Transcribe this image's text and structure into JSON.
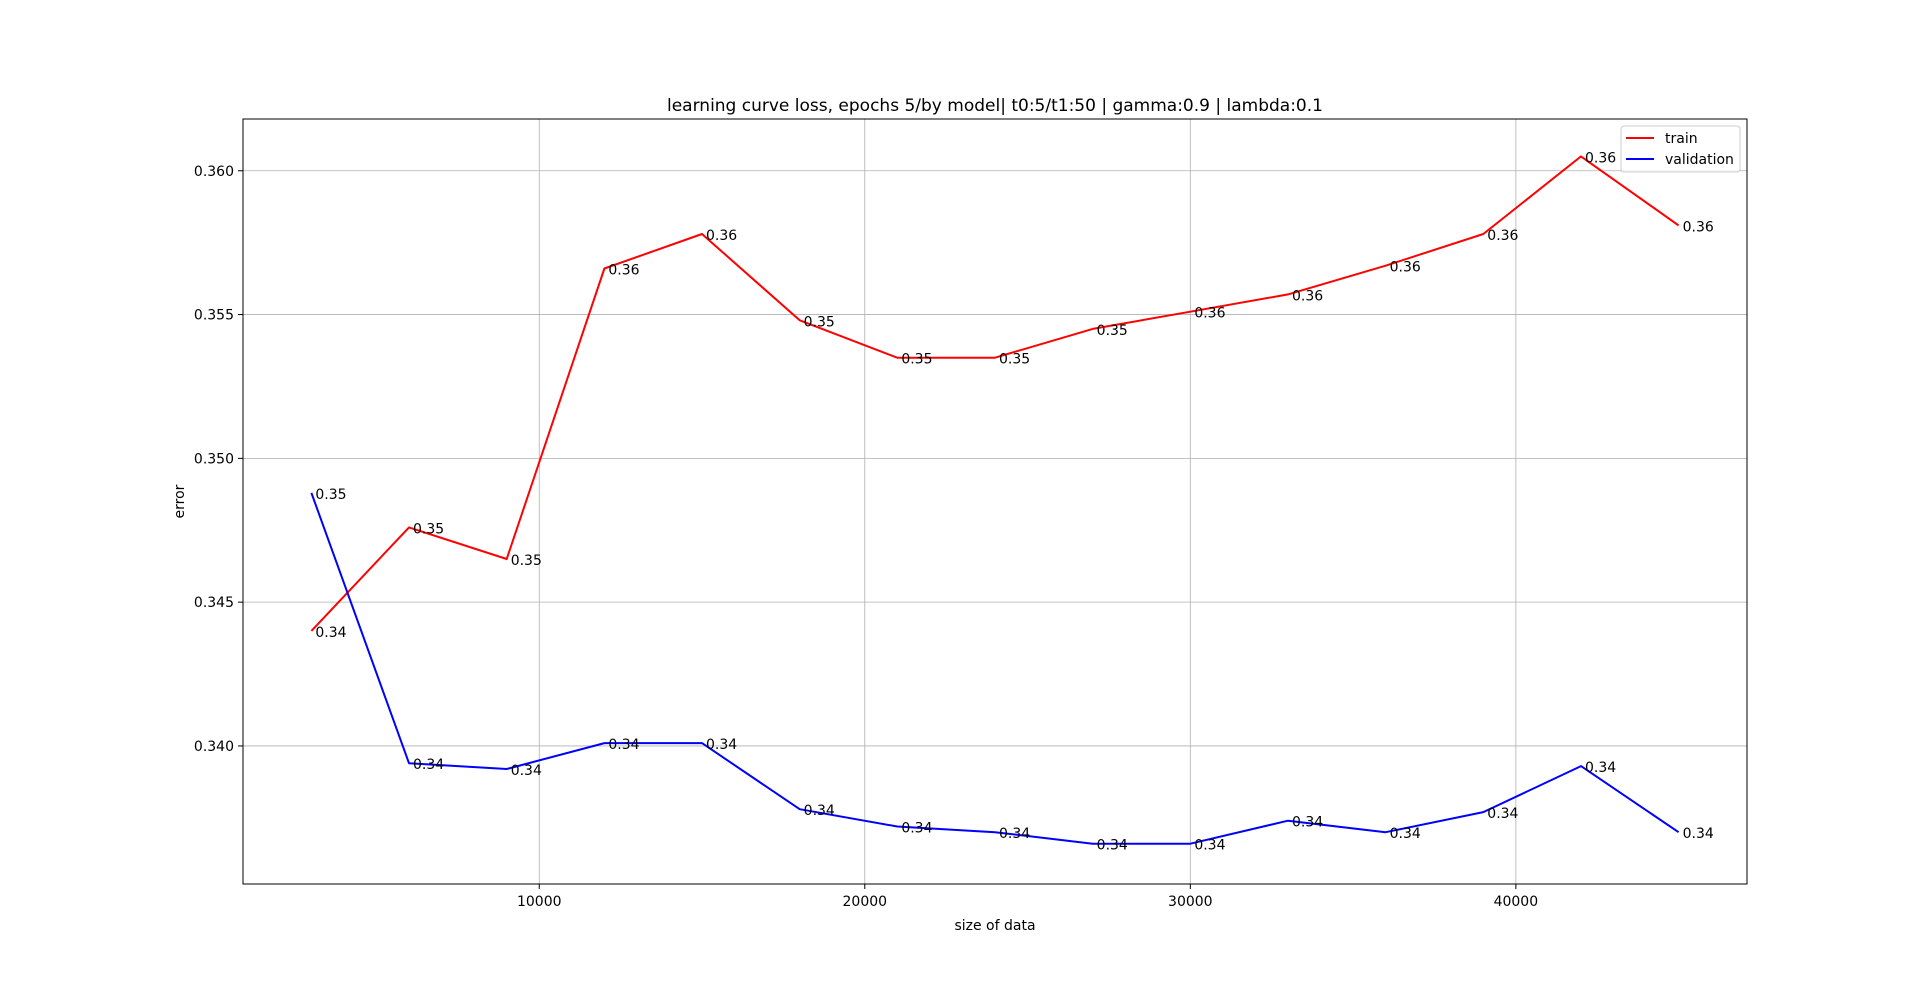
{
  "chart_data": {
    "type": "line",
    "title": "learning curve loss, epochs 5/by model| t0:5/t1:50 | gamma:0.9 | lambda:0.1",
    "xlabel": "size of data",
    "ylabel": "error",
    "xlim": [
      900,
      47100
    ],
    "ylim": [
      0.3352,
      0.3618
    ],
    "xticks": [
      10000,
      20000,
      30000,
      40000
    ],
    "xtick_labels": [
      "10000",
      "20000",
      "30000",
      "40000"
    ],
    "yticks": [
      0.34,
      0.345,
      0.35,
      0.355,
      0.36
    ],
    "ytick_labels": [
      "0.340",
      "0.345",
      "0.350",
      "0.355",
      "0.360"
    ],
    "grid": true,
    "legend": {
      "position": "top-right"
    },
    "x": [
      3000,
      6000,
      9000,
      12000,
      15000,
      18000,
      21000,
      24000,
      27000,
      30000,
      33000,
      36000,
      39000,
      42000,
      45000
    ],
    "series": [
      {
        "name": "train",
        "color": "#ff0000",
        "values": [
          0.344,
          0.3476,
          0.3465,
          0.3566,
          0.3578,
          0.3548,
          0.3535,
          0.3535,
          0.3545,
          0.3551,
          0.3557,
          0.3567,
          0.3578,
          0.3605,
          0.3581
        ],
        "labels": [
          "0.34",
          "0.35",
          "0.35",
          "0.36",
          "0.36",
          "0.35",
          "0.35",
          "0.35",
          "0.35",
          "0.36",
          "0.36",
          "0.36",
          "0.36",
          "0.36",
          "0.36"
        ]
      },
      {
        "name": "validation",
        "color": "#0000ff",
        "values": [
          0.3488,
          0.3394,
          0.3392,
          0.3401,
          0.3401,
          0.3378,
          0.3372,
          0.337,
          0.3366,
          0.3366,
          0.3374,
          0.337,
          0.3377,
          0.3393,
          0.337
        ],
        "labels": [
          "0.35",
          "0.34",
          "0.34",
          "0.34",
          "0.34",
          "0.34",
          "0.34",
          "0.34",
          "0.34",
          "0.34",
          "0.34",
          "0.34",
          "0.34",
          "0.34",
          "0.34"
        ]
      }
    ]
  }
}
